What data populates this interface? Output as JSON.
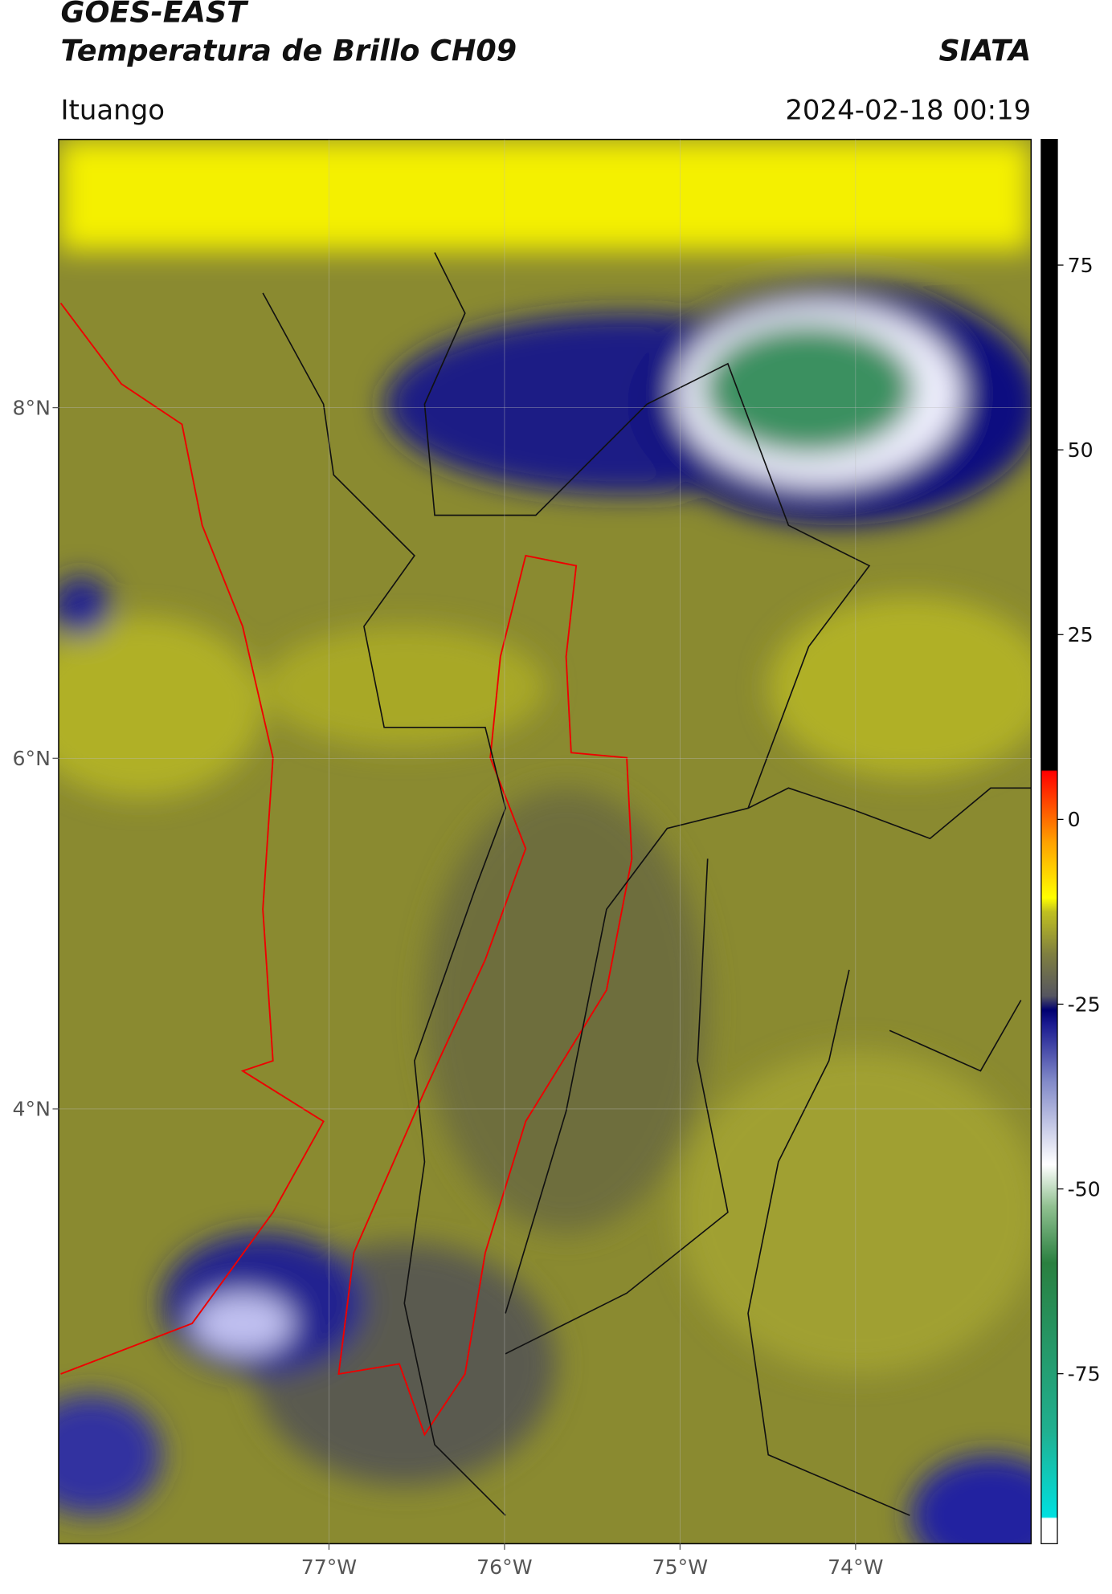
{
  "header": {
    "title_line1": "GOES-EAST",
    "title_line2": "Temperatura de Brillo CH09",
    "org": "SIATA",
    "location": "Ituango",
    "datetime": "2024-02-18 00:19"
  },
  "map": {
    "xlim": [
      -78.54,
      -73.0
    ],
    "ylim": [
      1.52,
      9.53
    ],
    "xticks": [
      {
        "value": -77,
        "label": "77°W"
      },
      {
        "value": -76,
        "label": "76°W"
      },
      {
        "value": -75,
        "label": "75°W"
      },
      {
        "value": -74,
        "label": "74°W"
      }
    ],
    "yticks": [
      {
        "value": 8,
        "label": "8°N"
      },
      {
        "value": 6,
        "label": "6°N"
      },
      {
        "value": 4,
        "label": "4°N"
      }
    ]
  },
  "colorbar": {
    "lim": [
      -98,
      92
    ],
    "ticks": [
      -75,
      -50,
      -25,
      0,
      25,
      50,
      75
    ]
  }
}
